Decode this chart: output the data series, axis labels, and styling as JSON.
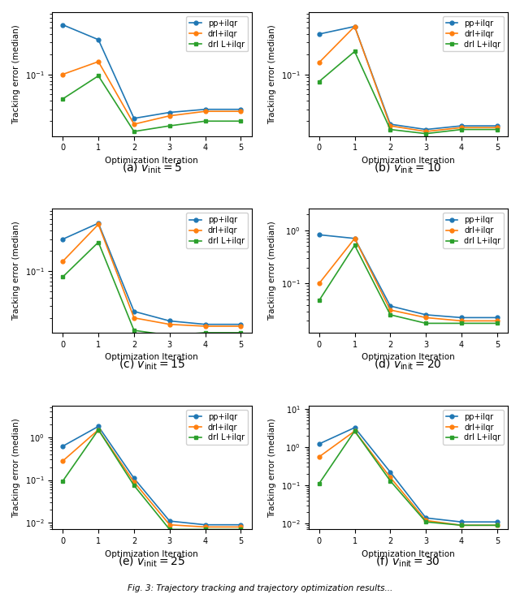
{
  "subplots": [
    {
      "label_text": "(a) ",
      "label_math": "v_\\mathrm{init} = 5",
      "pp_ilqr": [
        0.55,
        0.33,
        0.022,
        0.027,
        0.03,
        0.03
      ],
      "drl_ilqr": [
        0.1,
        0.155,
        0.018,
        0.024,
        0.028,
        0.028
      ],
      "drl_L_ilqr": [
        0.043,
        0.095,
        0.014,
        0.017,
        0.02,
        0.02
      ],
      "ylim": [
        0.012,
        0.85
      ]
    },
    {
      "label_text": "(b) ",
      "label_math": "v_\\mathrm{init} = 10",
      "pp_ilqr": [
        0.4,
        0.52,
        0.018,
        0.015,
        0.017,
        0.017
      ],
      "drl_ilqr": [
        0.15,
        0.52,
        0.017,
        0.014,
        0.016,
        0.016
      ],
      "drl_L_ilqr": [
        0.078,
        0.22,
        0.015,
        0.013,
        0.015,
        0.015
      ],
      "ylim": [
        0.012,
        0.85
      ]
    },
    {
      "label_text": "(c) ",
      "label_math": "v_\\mathrm{init} = 15",
      "pp_ilqr": [
        0.3,
        0.52,
        0.025,
        0.018,
        0.016,
        0.016
      ],
      "drl_ilqr": [
        0.14,
        0.5,
        0.02,
        0.016,
        0.015,
        0.015
      ],
      "drl_L_ilqr": [
        0.082,
        0.27,
        0.013,
        0.011,
        0.012,
        0.012
      ],
      "ylim": [
        0.012,
        0.85
      ]
    },
    {
      "label_text": "(d) ",
      "label_math": "v_\\mathrm{init} = 20",
      "pp_ilqr": [
        0.82,
        0.7,
        0.038,
        0.026,
        0.023,
        0.023
      ],
      "drl_ilqr": [
        0.1,
        0.7,
        0.032,
        0.023,
        0.02,
        0.02
      ],
      "drl_L_ilqr": [
        0.048,
        0.52,
        0.026,
        0.018,
        0.018,
        0.018
      ],
      "ylim": [
        0.012,
        2.5
      ]
    },
    {
      "label_text": "(e) ",
      "label_math": "v_\\mathrm{init} = 25",
      "pp_ilqr": [
        0.62,
        1.8,
        0.11,
        0.011,
        0.009,
        0.009
      ],
      "drl_ilqr": [
        0.28,
        1.5,
        0.09,
        0.009,
        0.008,
        0.008
      ],
      "drl_L_ilqr": [
        0.095,
        1.5,
        0.075,
        0.007,
        0.007,
        0.007
      ],
      "ylim": [
        0.007,
        5.5
      ]
    },
    {
      "label_text": "(f) ",
      "label_math": "v_\\mathrm{init} = 30",
      "pp_ilqr": [
        1.2,
        3.2,
        0.22,
        0.014,
        0.011,
        0.011
      ],
      "drl_ilqr": [
        0.55,
        2.6,
        0.16,
        0.012,
        0.009,
        0.009
      ],
      "drl_L_ilqr": [
        0.11,
        2.6,
        0.13,
        0.011,
        0.009,
        0.009
      ],
      "ylim": [
        0.007,
        12.0
      ]
    }
  ],
  "x": [
    0,
    1,
    2,
    3,
    4,
    5
  ],
  "colors": {
    "pp_ilqr": "#1f77b4",
    "drl_ilqr": "#ff7f0e",
    "drl_L_ilqr": "#2ca02c"
  },
  "legend_labels": [
    "pp+ilqr",
    "drl+ilqr",
    "drl L+ilqr"
  ],
  "xlabel": "Optimization Iteration",
  "ylabel": "Tracking error (median)",
  "figsize": [
    6.4,
    7.32
  ],
  "dpi": 100,
  "caption": "Fig. 3: Trajectory tracking and trajectory optimization results..."
}
